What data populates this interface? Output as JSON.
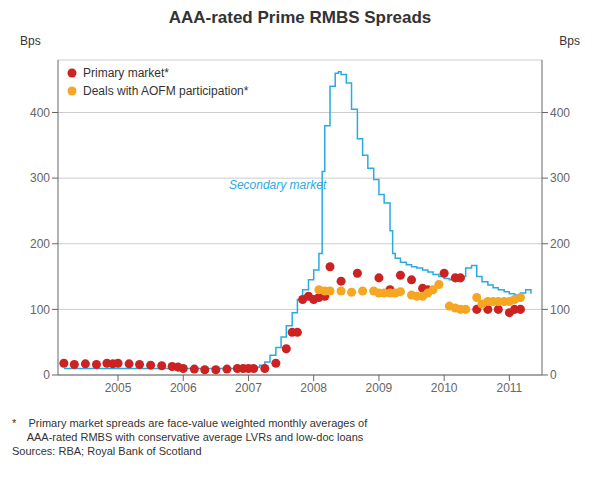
{
  "chart_data": {
    "type": "line",
    "title": "AAA-rated Prime RMBS Spreads",
    "ylabel": "Bps",
    "y2label": "Bps",
    "xlim": [
      2004.08,
      2011.5
    ],
    "xticks": [
      2005,
      2006,
      2007,
      2008,
      2009,
      2010,
      2011
    ],
    "ylim": [
      0,
      480
    ],
    "yticks": [
      0,
      100,
      200,
      300,
      400
    ],
    "y2lim": [
      0,
      480
    ],
    "y2ticks": [
      0,
      100,
      200,
      300,
      400
    ],
    "grid": true,
    "legend": "upper left",
    "annotations": [
      {
        "text": "Secondary market",
        "x": 2006.7,
        "y": 290,
        "color": "#29ABE2"
      }
    ],
    "footnote": [
      "*    Primary market spreads are face-value weighted monthly averages of",
      "     AAA-rated RMBS with conservative average LVRs and low-doc loans",
      "Sources: RBA; Royal Bank of Scotland"
    ],
    "series": [
      {
        "type": "line",
        "line_style": "step",
        "color": "#29ABE2",
        "x": [
          2004.17,
          2004.25,
          2004.33,
          2004.42,
          2004.5,
          2004.58,
          2004.67,
          2004.75,
          2004.83,
          2004.92,
          2005.0,
          2005.08,
          2005.17,
          2005.25,
          2005.33,
          2005.42,
          2005.5,
          2005.58,
          2005.67,
          2005.75,
          2005.83,
          2005.92,
          2006.0,
          2006.08,
          2006.17,
          2006.25,
          2006.33,
          2006.42,
          2006.5,
          2006.58,
          2006.67,
          2006.75,
          2006.83,
          2006.92,
          2007.0,
          2007.08,
          2007.17,
          2007.25,
          2007.33,
          2007.42,
          2007.5,
          2007.58,
          2007.67,
          2007.75,
          2007.83,
          2007.92,
          2008.0,
          2008.08,
          2008.13,
          2008.17,
          2008.25,
          2008.33,
          2008.38,
          2008.42,
          2008.5,
          2008.58,
          2008.67,
          2008.75,
          2008.83,
          2008.92,
          2009.0,
          2009.08,
          2009.17,
          2009.21,
          2009.25,
          2009.33,
          2009.42,
          2009.5,
          2009.58,
          2009.67,
          2009.75,
          2009.83,
          2009.92,
          2010.0,
          2010.08,
          2010.17,
          2010.25,
          2010.33,
          2010.42,
          2010.5,
          2010.58,
          2010.67,
          2010.75,
          2010.83,
          2010.92,
          2011.0,
          2011.08,
          2011.17,
          2011.25,
          2011.33
        ],
        "values": [
          10,
          10,
          10,
          10,
          10,
          10,
          10,
          10,
          10,
          10,
          10,
          10,
          10,
          10,
          10,
          10,
          10,
          10,
          10,
          10,
          10,
          10,
          10,
          10,
          10,
          10,
          10,
          10,
          10,
          10,
          10,
          10,
          10,
          10,
          10,
          12,
          15,
          20,
          30,
          42,
          58,
          75,
          95,
          115,
          130,
          145,
          160,
          185,
          310,
          380,
          440,
          460,
          462,
          458,
          445,
          405,
          360,
          335,
          315,
          298,
          275,
          262,
          220,
          185,
          178,
          172,
          168,
          165,
          163,
          160,
          157,
          153,
          150,
          147,
          145,
          143,
          150,
          163,
          167,
          150,
          142,
          137,
          133,
          130,
          127,
          124,
          122,
          125,
          130,
          124
        ]
      },
      {
        "name": "Primary market*",
        "type": "scatter",
        "marker": "o",
        "color": "#CC2222",
        "x": [
          2004.17,
          2004.33,
          2004.5,
          2004.67,
          2004.83,
          2004.92,
          2005.0,
          2005.17,
          2005.33,
          2005.5,
          2005.67,
          2005.83,
          2005.92,
          2006.0,
          2006.17,
          2006.33,
          2006.5,
          2006.67,
          2006.83,
          2006.92,
          2007.0,
          2007.08,
          2007.25,
          2007.42,
          2007.58,
          2007.67,
          2007.75,
          2007.83,
          2007.92,
          2008.0,
          2008.08,
          2008.17,
          2008.25,
          2008.42,
          2008.67,
          2009.0,
          2009.17,
          2009.33,
          2009.5,
          2009.67,
          2009.75,
          2010.0,
          2010.17,
          2010.25,
          2010.5,
          2010.67,
          2010.83,
          2011.0,
          2011.08,
          2011.17
        ],
        "values": [
          18,
          16,
          17,
          16,
          18,
          17,
          18,
          17,
          16,
          15,
          14,
          13,
          12,
          10,
          9,
          8,
          8,
          9,
          10,
          10,
          10,
          10,
          10,
          18,
          40,
          65,
          65,
          115,
          120,
          115,
          118,
          120,
          165,
          143,
          155,
          148,
          130,
          152,
          145,
          132,
          130,
          155,
          148,
          148,
          100,
          100,
          100,
          95,
          100,
          100
        ]
      },
      {
        "name": "Deals with AOFM participation*",
        "type": "scatter",
        "marker": "o",
        "color": "#F5A623",
        "x": [
          2008.08,
          2008.17,
          2008.25,
          2008.42,
          2008.58,
          2008.75,
          2008.92,
          2009.0,
          2009.08,
          2009.17,
          2009.25,
          2009.33,
          2009.5,
          2009.58,
          2009.67,
          2009.75,
          2009.83,
          2009.92,
          2010.08,
          2010.17,
          2010.25,
          2010.33,
          2010.5,
          2010.58,
          2010.67,
          2010.75,
          2010.83,
          2010.92,
          2011.0,
          2011.08,
          2011.17
        ],
        "values": [
          130,
          128,
          128,
          128,
          126,
          128,
          128,
          125,
          125,
          125,
          125,
          127,
          122,
          120,
          120,
          125,
          130,
          138,
          105,
          102,
          100,
          100,
          118,
          108,
          112,
          112,
          112,
          112,
          112,
          115,
          118
        ]
      }
    ]
  }
}
